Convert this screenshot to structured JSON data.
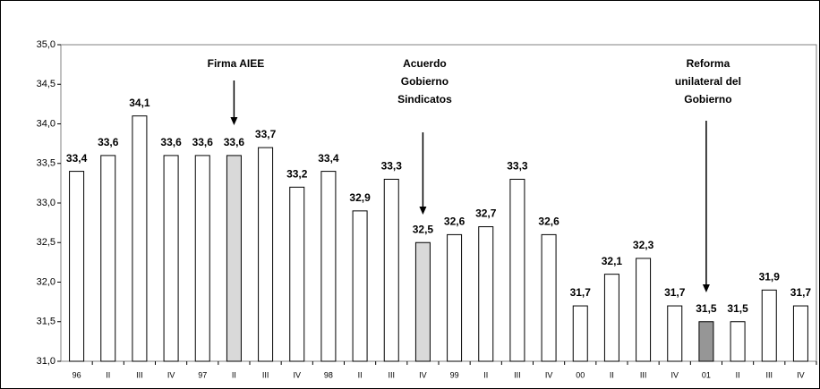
{
  "chart_data": {
    "type": "bar",
    "categories": [
      "96",
      "II",
      "III",
      "IV",
      "97",
      "II",
      "III",
      "IV",
      "98",
      "II",
      "III",
      "IV",
      "99",
      "II",
      "III",
      "IV",
      "00",
      "II",
      "III",
      "IV",
      "01",
      "II",
      "III",
      "IV"
    ],
    "values": [
      33.4,
      33.6,
      34.1,
      33.6,
      33.6,
      33.6,
      33.7,
      33.2,
      33.4,
      32.9,
      33.3,
      32.5,
      32.6,
      32.7,
      33.3,
      32.6,
      31.7,
      32.1,
      32.3,
      31.7,
      31.5,
      31.5,
      31.9,
      31.7
    ],
    "value_labels": [
      "33,4",
      "33,6",
      "34,1",
      "33,6",
      "33,6",
      "33,6",
      "33,7",
      "33,2",
      "33,4",
      "32,9",
      "33,3",
      "32,5",
      "32,6",
      "32,7",
      "33,3",
      "32,6",
      "31,7",
      "32,1",
      "32,3",
      "31,7",
      "31,5",
      "31,5",
      "31,9",
      "31,7"
    ],
    "colors": [
      "#ffffff",
      "#ffffff",
      "#ffffff",
      "#ffffff",
      "#ffffff",
      "#d9d9d9",
      "#ffffff",
      "#ffffff",
      "#ffffff",
      "#ffffff",
      "#ffffff",
      "#d9d9d9",
      "#ffffff",
      "#ffffff",
      "#ffffff",
      "#ffffff",
      "#ffffff",
      "#ffffff",
      "#ffffff",
      "#ffffff",
      "#969696",
      "#ffffff",
      "#ffffff",
      "#ffffff"
    ],
    "ylim": [
      31,
      35
    ],
    "yticks": [
      {
        "value": 31,
        "label": "31,0"
      },
      {
        "value": 31.5,
        "label": "31,5"
      },
      {
        "value": 32,
        "label": "32,0"
      },
      {
        "value": 32.5,
        "label": "32,5"
      },
      {
        "value": 33,
        "label": "33,0"
      },
      {
        "value": 33.5,
        "label": "33,5"
      },
      {
        "value": 34,
        "label": "34,0"
      },
      {
        "value": 34.5,
        "label": "34,5"
      },
      {
        "value": 35,
        "label": "35,0"
      }
    ],
    "annotations": [
      [
        "Firma AIEE"
      ],
      [
        "Acuerdo",
        "Gobierno",
        "Sindicatos"
      ],
      [
        "Reforma",
        "unilateral del",
        "Gobierno"
      ]
    ]
  }
}
